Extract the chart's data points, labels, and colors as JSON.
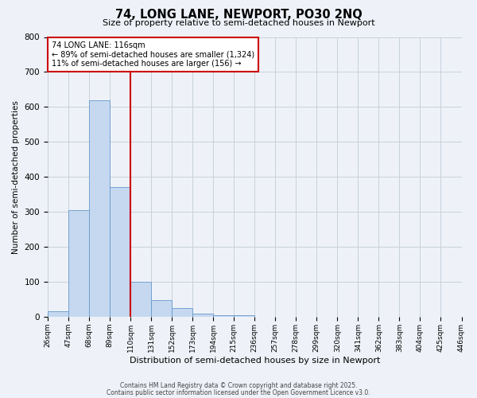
{
  "title": "74, LONG LANE, NEWPORT, PO30 2NQ",
  "subtitle": "Size of property relative to semi-detached houses in Newport",
  "bar_values": [
    15,
    305,
    620,
    370,
    100,
    48,
    25,
    10,
    5,
    5,
    0,
    0,
    0,
    0,
    0,
    0,
    0,
    0,
    0,
    0
  ],
  "bin_labels": [
    "26sqm",
    "47sqm",
    "68sqm",
    "89sqm",
    "110sqm",
    "131sqm",
    "152sqm",
    "173sqm",
    "194sqm",
    "215sqm",
    "236sqm",
    "257sqm",
    "278sqm",
    "299sqm",
    "320sqm",
    "341sqm",
    "362sqm",
    "383sqm",
    "404sqm",
    "425sqm",
    "446sqm"
  ],
  "bar_color": "#c5d8f0",
  "bar_edge_color": "#6699cc",
  "property_line_x": 4,
  "property_line_color": "#cc0000",
  "annotation_title": "74 LONG LANE: 116sqm",
  "annotation_line1": "← 89% of semi-detached houses are smaller (1,324)",
  "annotation_line2": "11% of semi-detached houses are larger (156) →",
  "annotation_box_color": "#cc0000",
  "xlabel": "Distribution of semi-detached houses by size in Newport",
  "ylabel": "Number of semi-detached properties",
  "ylim": [
    0,
    800
  ],
  "yticks": [
    0,
    100,
    200,
    300,
    400,
    500,
    600,
    700,
    800
  ],
  "footnote1": "Contains HM Land Registry data © Crown copyright and database right 2025.",
  "footnote2": "Contains public sector information licensed under the Open Government Licence v3.0.",
  "bg_color": "#eef2f8",
  "plot_bg_color": "#eef2f8",
  "grid_color": "#c8d0dc"
}
